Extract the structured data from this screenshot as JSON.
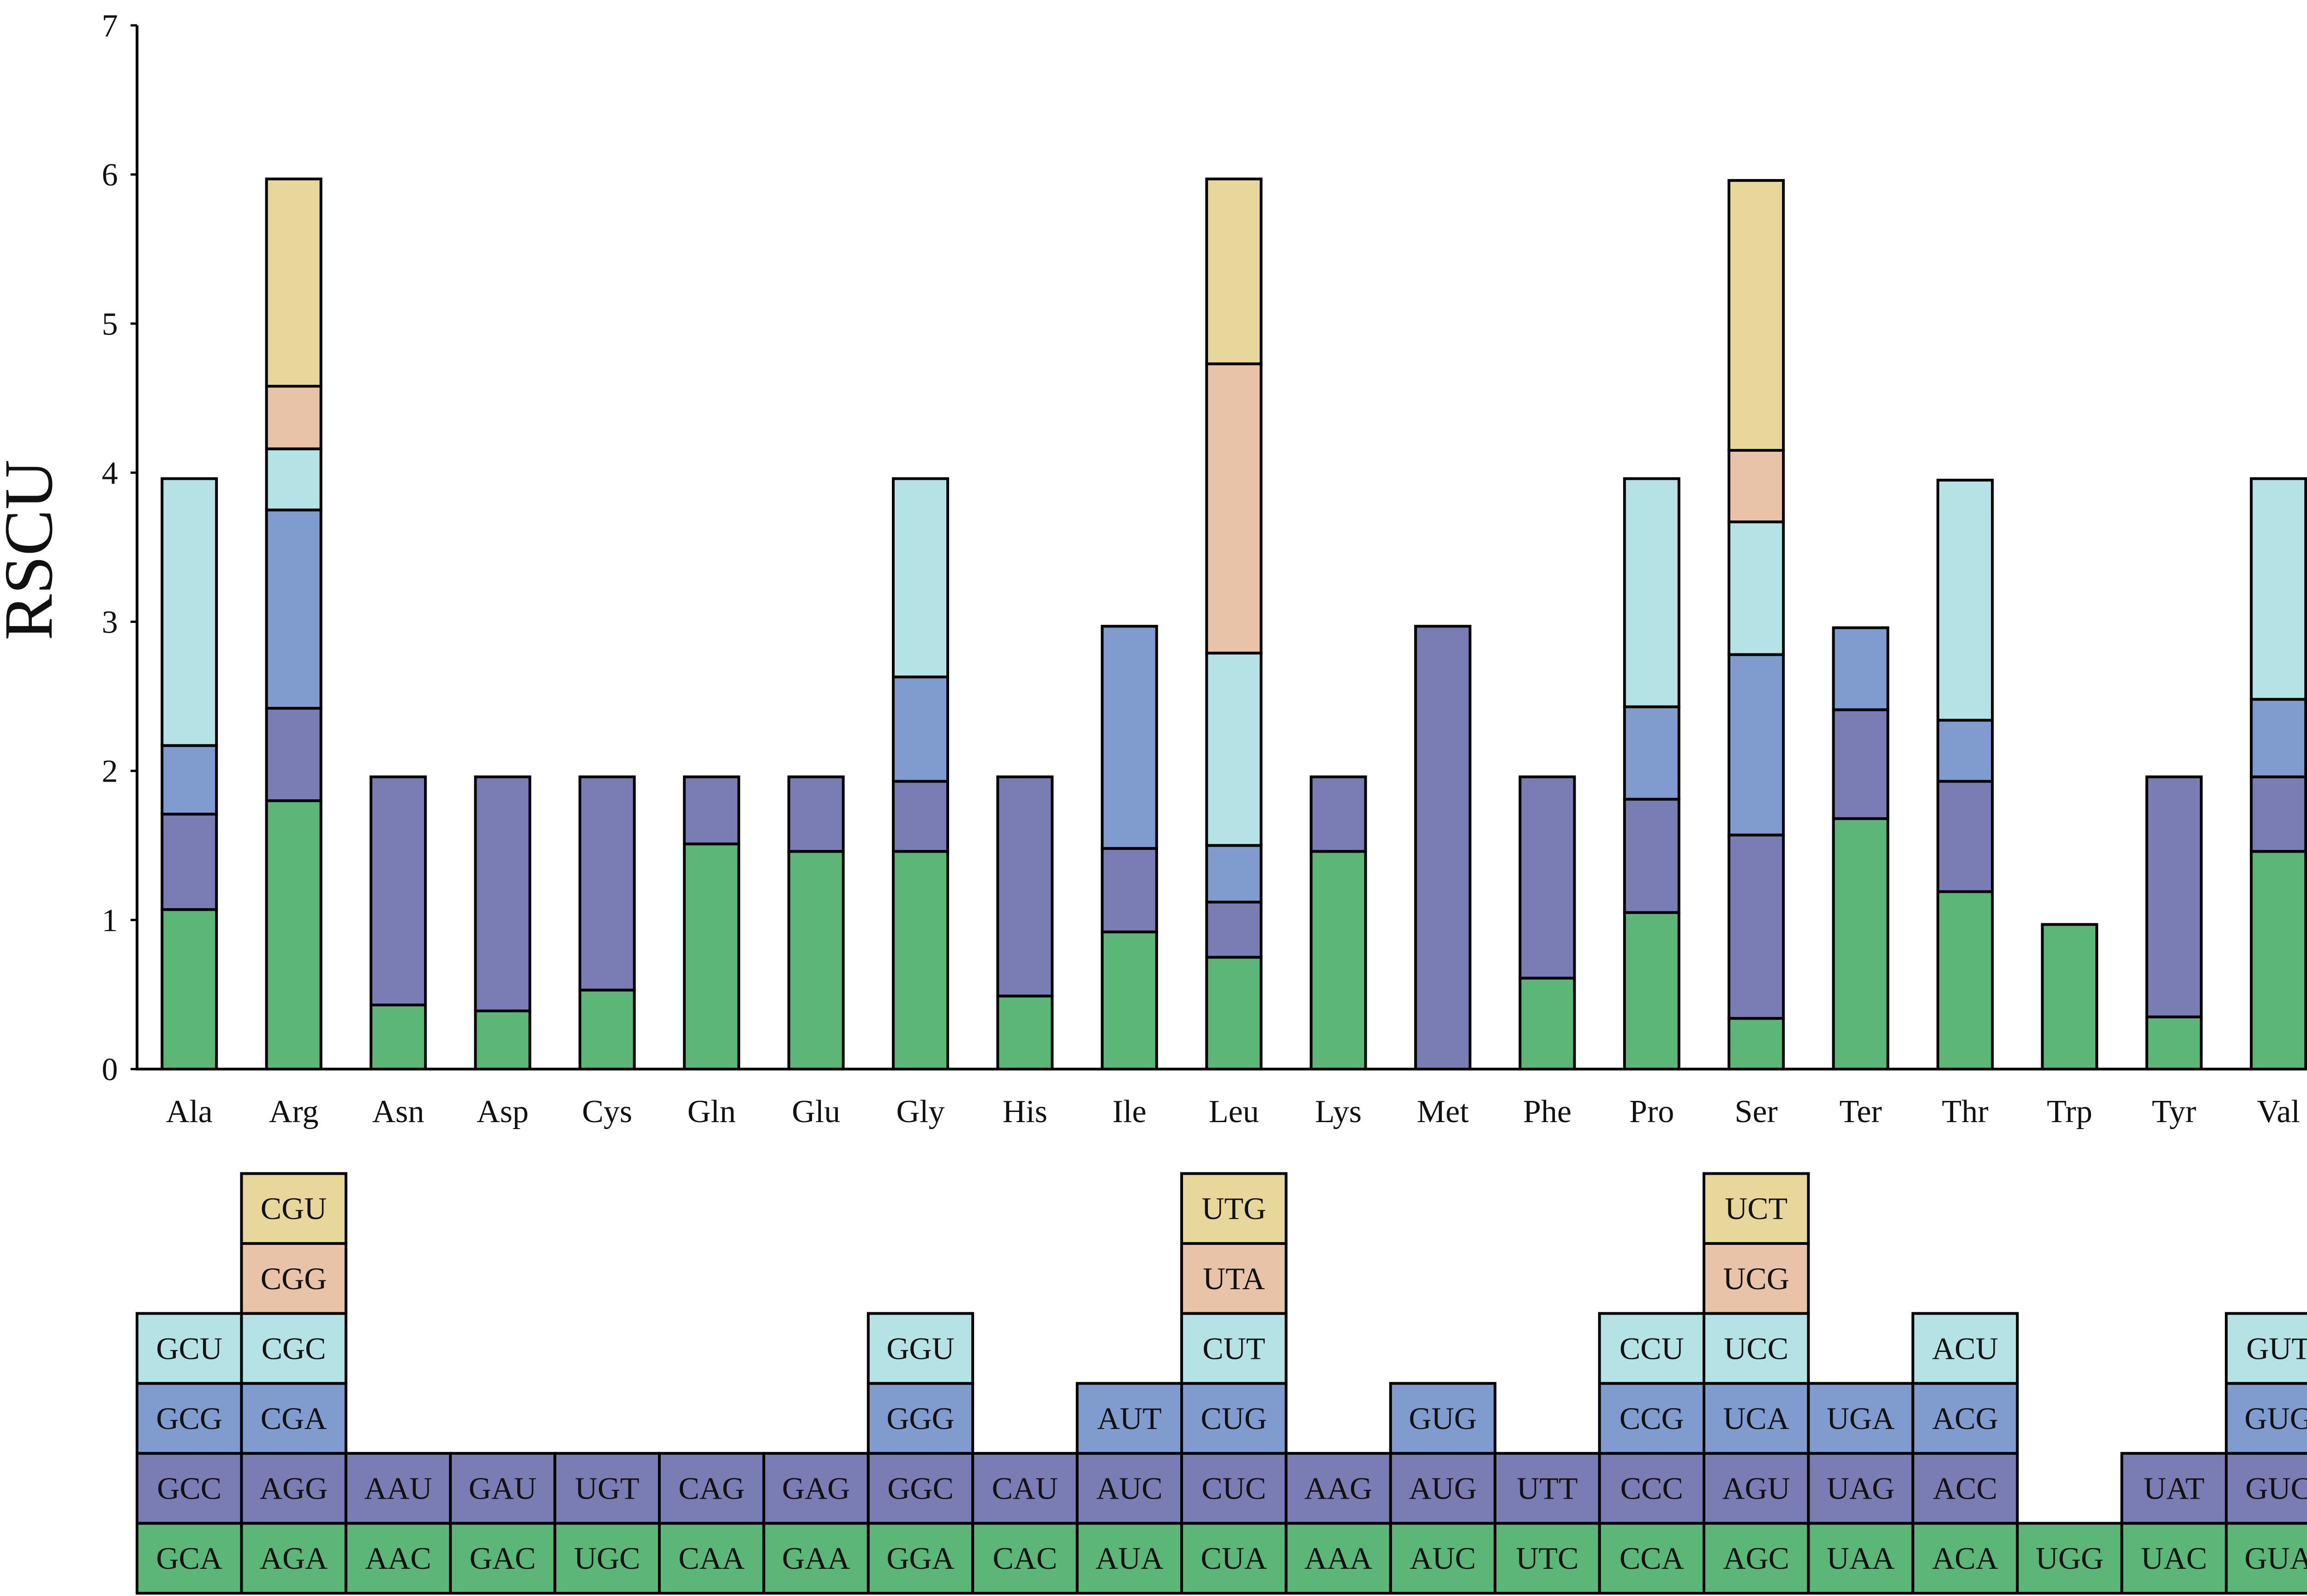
{
  "chart_data": {
    "type": "bar",
    "stacked": true,
    "ylabel": "RSCU",
    "xlabel": "",
    "ylim": [
      0,
      7
    ],
    "yticks": [
      "0",
      "1",
      "2",
      "3",
      "4",
      "5",
      "6",
      "7"
    ],
    "categories": [
      "Ala",
      "Arg",
      "Asn",
      "Asp",
      "Cys",
      "Gln",
      "Glu",
      "Gly",
      "His",
      "Ile",
      "Leu",
      "Lys",
      "Met",
      "Phe",
      "Pro",
      "Ser",
      "Ter",
      "Thr",
      "Trp",
      "Tyr",
      "Val"
    ],
    "layer_colors": [
      "#5cb677",
      "#7a7cb4",
      "#809ccf",
      "#b4e2e5",
      "#e8c3a8",
      "#e8d79a"
    ],
    "series": [
      {
        "name": "layer1",
        "values": [
          1.07,
          1.8,
          0.43,
          0.39,
          0.53,
          1.51,
          1.46,
          1.46,
          0.49,
          0.92,
          0.75,
          1.46,
          0.0,
          0.61,
          1.05,
          0.34,
          1.68,
          1.19,
          0.97,
          0.35,
          1.46
        ],
        "codons": [
          "GCA",
          "AGA",
          "AAC",
          "GAC",
          "UGC",
          "CAA",
          "GAA",
          "GGA",
          "CAC",
          "AUA",
          "CUA",
          "AAA",
          "AUC",
          "UTC",
          "CCA",
          "AGC",
          "UAA",
          "ACA",
          "UGG",
          "UAC",
          "GUA"
        ]
      },
      {
        "name": "layer2",
        "values": [
          0.64,
          0.62,
          1.53,
          1.57,
          1.43,
          0.45,
          0.5,
          0.47,
          1.47,
          0.56,
          0.37,
          0.5,
          2.97,
          1.35,
          0.76,
          1.23,
          0.73,
          0.74,
          0,
          1.61,
          0.5
        ],
        "codons": [
          "GCC",
          "AGG",
          "AAU",
          "GAU",
          "UGT",
          "CAG",
          "GAG",
          "GGC",
          "CAU",
          "AUC",
          "CUC",
          "AAG",
          "AUG",
          "UTT",
          "CCC",
          "AGU",
          "UAG",
          "ACC",
          "",
          "UAT",
          "GUC"
        ]
      },
      {
        "name": "layer3",
        "values": [
          0.46,
          1.33,
          0,
          0,
          0,
          0,
          0,
          0.7,
          0,
          1.49,
          0.38,
          0,
          0,
          0,
          0.62,
          1.21,
          0.55,
          0.41,
          0,
          0,
          0.52
        ],
        "codons": [
          "GCG",
          "CGA",
          "",
          "",
          "",
          "",
          "",
          "GGG",
          "",
          "AUT",
          "CUG",
          "",
          "GUG",
          "",
          "CCG",
          "UCA",
          "UGA",
          "ACG",
          "",
          "",
          "GUG"
        ]
      },
      {
        "name": "layer4",
        "values": [
          1.79,
          0.41,
          0,
          0,
          0,
          0,
          0,
          1.33,
          0,
          0,
          1.29,
          0,
          0,
          0,
          1.53,
          0.89,
          0,
          1.61,
          0,
          0,
          1.48
        ],
        "codons": [
          "GCU",
          "CGC",
          "",
          "",
          "",
          "",
          "",
          "GGU",
          "",
          "",
          "CUT",
          "",
          "",
          "",
          "CCU",
          "UCC",
          "",
          "ACU",
          "",
          "",
          "GUT"
        ]
      },
      {
        "name": "layer5",
        "values": [
          0,
          0.42,
          0,
          0,
          0,
          0,
          0,
          0,
          0,
          0,
          1.94,
          0,
          0,
          0,
          0,
          0.48,
          0,
          0,
          0,
          0,
          0
        ],
        "codons": [
          "",
          "CGG",
          "",
          "",
          "",
          "",
          "",
          "",
          "",
          "",
          "UTA",
          "",
          "",
          "",
          "",
          "UCG",
          "",
          "",
          "",
          "",
          ""
        ]
      },
      {
        "name": "layer6",
        "values": [
          0,
          1.39,
          0,
          0,
          0,
          0,
          0,
          0,
          0,
          0,
          1.24,
          0,
          0,
          0,
          0,
          1.81,
          0,
          0,
          0,
          0,
          0
        ],
        "codons": [
          "",
          "CGU",
          "",
          "",
          "",
          "",
          "",
          "",
          "",
          "",
          "UTG",
          "",
          "",
          "",
          "",
          "UCT",
          "",
          "",
          "",
          "",
          ""
        ]
      }
    ]
  }
}
